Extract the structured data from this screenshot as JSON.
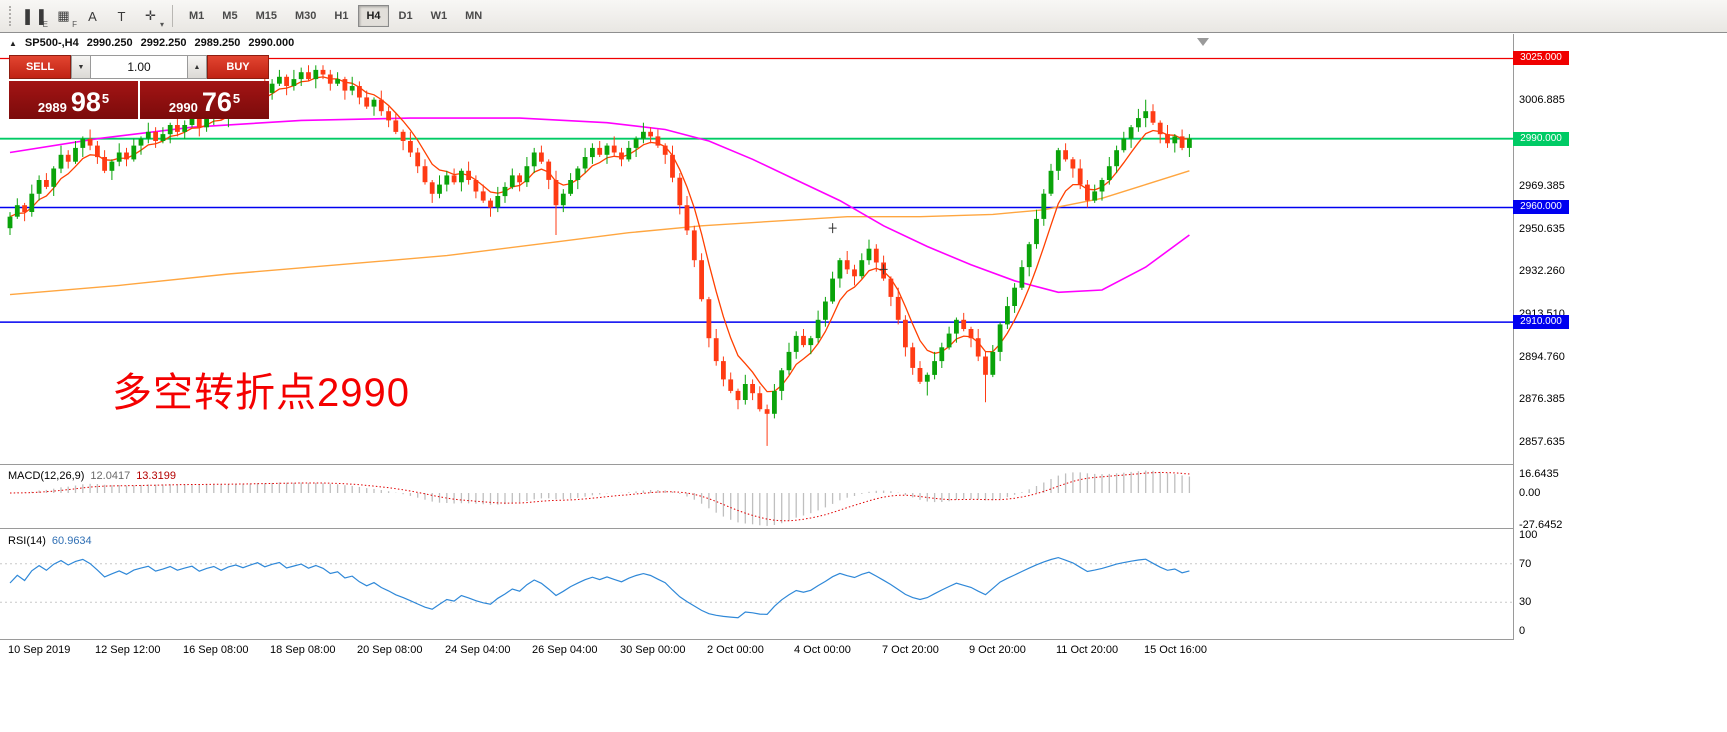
{
  "toolbar": {
    "icons": [
      {
        "name": "chart-mode-icon",
        "glyph": "▌▐",
        "badge": "E"
      },
      {
        "name": "grid-icon",
        "glyph": "▦",
        "badge": "F"
      },
      {
        "name": "text-annotation-icon",
        "glyph": "A",
        "badge": ""
      },
      {
        "name": "text-box-icon",
        "glyph": "T",
        "badge": ""
      },
      {
        "name": "cursor-tools-icon",
        "glyph": "✛",
        "badge": "▾"
      }
    ],
    "timeframes": [
      "M1",
      "M5",
      "M15",
      "M30",
      "H1",
      "H4",
      "D1",
      "W1",
      "MN"
    ],
    "active_timeframe": "H4"
  },
  "quote_bar": {
    "collapse_icon": "▲",
    "symbol": "SP500-,H4",
    "open": "2990.250",
    "high": "2992.250",
    "low": "2989.250",
    "close": "2990.000"
  },
  "trade_panel": {
    "sell_label": "SELL",
    "buy_label": "BUY",
    "volume": "1.00",
    "spinner_down": "▼",
    "spinner_up": "▲",
    "bid": {
      "main": "2989",
      "big": "98",
      "sup": "5"
    },
    "ask": {
      "main": "2990",
      "big": "76",
      "sup": "5"
    }
  },
  "annotation": {
    "text": "多空转折点2990",
    "color": "#f40000"
  },
  "price_axis": {
    "ticks": [
      {
        "label": "3006.885",
        "price": 3006.885
      },
      {
        "label": "2969.385",
        "price": 2969.385
      },
      {
        "label": "2950.635",
        "price": 2950.635
      },
      {
        "label": "2932.260",
        "price": 2932.26
      },
      {
        "label": "2913.510",
        "price": 2913.51
      },
      {
        "label": "2894.760",
        "price": 2894.76
      },
      {
        "label": "2876.385",
        "price": 2876.385
      },
      {
        "label": "2857.635",
        "price": 2857.635
      }
    ],
    "boxes": [
      {
        "label": "3025.000",
        "price": 3025.0,
        "color": "#f00000"
      },
      {
        "label": "2990.000",
        "price": 2990.0,
        "color": "#00cb65"
      },
      {
        "label": "2960.000",
        "price": 2960.0,
        "color": "#0000f0"
      },
      {
        "label": "2910.000",
        "price": 2910.0,
        "color": "#0000f0"
      }
    ]
  },
  "time_axis": [
    {
      "i": 0,
      "label": "10 Sep 2019"
    },
    {
      "i": 12,
      "label": "12 Sep 12:00"
    },
    {
      "i": 24,
      "label": "16 Sep 08:00"
    },
    {
      "i": 36,
      "label": "18 Sep 08:00"
    },
    {
      "i": 48,
      "label": "20 Sep 08:00"
    },
    {
      "i": 60,
      "label": "24 Sep 04:00"
    },
    {
      "i": 72,
      "label": "26 Sep 04:00"
    },
    {
      "i": 84,
      "label": "30 Sep 00:00"
    },
    {
      "i": 96,
      "label": "2 Oct 00:00"
    },
    {
      "i": 108,
      "label": "4 Oct 00:00"
    },
    {
      "i": 120,
      "label": "7 Oct 20:00"
    },
    {
      "i": 132,
      "label": "9 Oct 20:00"
    },
    {
      "i": 144,
      "label": "11 Oct 20:00"
    },
    {
      "i": 156,
      "label": "15 Oct 16:00"
    }
  ],
  "macd": {
    "title": "MACD(12,26,9)",
    "value_main": "12.0417",
    "value_signal": "13.3199",
    "axis": [
      {
        "label": "16.6435",
        "value": 16.6435
      },
      {
        "label": "0.00",
        "value": 0
      },
      {
        "label": "-27.6452",
        "value": -27.6452
      }
    ]
  },
  "rsi": {
    "title": "RSI(14)",
    "value": "60.9634",
    "axis": [
      {
        "label": "100",
        "value": 100
      },
      {
        "label": "70",
        "value": 70
      },
      {
        "label": "30",
        "value": 30
      },
      {
        "label": "0",
        "value": 0
      }
    ],
    "levels": [
      70,
      30
    ]
  },
  "chart_data": {
    "type": "candlestick",
    "symbol": "SP500-",
    "timeframe": "H4",
    "price_range": [
      2848,
      3035
    ],
    "up_color": "#0aa30a",
    "down_color": "#ff3b14",
    "hlines": [
      {
        "price": 3025.0,
        "color": "#f00000",
        "width": 1.2
      },
      {
        "price": 2990.0,
        "color": "#00cb65",
        "width": 1.8
      },
      {
        "price": 2960.0,
        "color": "#0000f0",
        "width": 1.5
      },
      {
        "price": 2910.0,
        "color": "#0000f0",
        "width": 1.5
      }
    ],
    "moving_averages": {
      "fast": {
        "color": "#ff4000",
        "period": 6
      },
      "mid": {
        "color": "#ff00ff",
        "anchors": [
          [
            0,
            2984
          ],
          [
            12,
            2990
          ],
          [
            25,
            2995
          ],
          [
            40,
            2998
          ],
          [
            55,
            2999
          ],
          [
            70,
            2999
          ],
          [
            82,
            2997
          ],
          [
            90,
            2994
          ],
          [
            96,
            2989
          ],
          [
            102,
            2981
          ],
          [
            108,
            2972
          ],
          [
            114,
            2963
          ],
          [
            120,
            2952
          ],
          [
            126,
            2943
          ],
          [
            132,
            2935
          ],
          [
            138,
            2928
          ],
          [
            144,
            2923
          ],
          [
            150,
            2924
          ],
          [
            156,
            2934
          ],
          [
            162,
            2948
          ]
        ]
      },
      "slow": {
        "color": "#ffa640",
        "anchors": [
          [
            0,
            2922
          ],
          [
            15,
            2926
          ],
          [
            30,
            2931
          ],
          [
            45,
            2935
          ],
          [
            60,
            2939
          ],
          [
            75,
            2945
          ],
          [
            85,
            2949
          ],
          [
            95,
            2952
          ],
          [
            105,
            2954
          ],
          [
            115,
            2956
          ],
          [
            125,
            2956
          ],
          [
            135,
            2957
          ],
          [
            142,
            2959
          ],
          [
            150,
            2964
          ],
          [
            156,
            2970
          ],
          [
            162,
            2976
          ]
        ]
      }
    },
    "markers": [
      {
        "i": 113,
        "price": 2951
      },
      {
        "i": 120,
        "price": 2933
      }
    ],
    "candles": [
      [
        2951,
        2958,
        2948,
        2956
      ],
      [
        2956,
        2964,
        2955,
        2961
      ],
      [
        2961,
        2962,
        2954,
        2958
      ],
      [
        2958,
        2970,
        2956,
        2966
      ],
      [
        2966,
        2974,
        2963,
        2972
      ],
      [
        2972,
        2975,
        2968,
        2969
      ],
      [
        2969,
        2978,
        2965,
        2977
      ],
      [
        2977,
        2987,
        2975,
        2983
      ],
      [
        2983,
        2985,
        2977,
        2980
      ],
      [
        2980,
        2989,
        2979,
        2986
      ],
      [
        2986,
        2991,
        2982,
        2990
      ],
      [
        2990,
        2994,
        2985,
        2987
      ],
      [
        2987,
        2989,
        2979,
        2982
      ],
      [
        2982,
        2985,
        2975,
        2976
      ],
      [
        2976,
        2981,
        2972,
        2980
      ],
      [
        2980,
        2988,
        2978,
        2984
      ],
      [
        2984,
        2986,
        2978,
        2981
      ],
      [
        2981,
        2990,
        2980,
        2987
      ],
      [
        2987,
        2991,
        2983,
        2990
      ],
      [
        2990,
        2997,
        2988,
        2993
      ],
      [
        2993,
        2995,
        2986,
        2989
      ],
      [
        2989,
        2995,
        2988,
        2992
      ],
      [
        2992,
        2997,
        2988,
        2996
      ],
      [
        2996,
        3000,
        2991,
        2993
      ],
      [
        2993,
        2998,
        2990,
        2996
      ],
      [
        2996,
        3002,
        2995,
        2999
      ],
      [
        2999,
        3000,
        2991,
        2995
      ],
      [
        2995,
        3003,
        2993,
        2999
      ],
      [
        2999,
        3004,
        2996,
        3002
      ],
      [
        3002,
        3005,
        2998,
        2999
      ],
      [
        2999,
        3005,
        2995,
        3004
      ],
      [
        3004,
        3011,
        3002,
        3007
      ],
      [
        3007,
        3009,
        3002,
        3005
      ],
      [
        3005,
        3012,
        3004,
        3009
      ],
      [
        3009,
        3014,
        3005,
        3013
      ],
      [
        3013,
        3017,
        3008,
        3010
      ],
      [
        3010,
        3016,
        3007,
        3014
      ],
      [
        3014,
        3020,
        3013,
        3017
      ],
      [
        3017,
        3018,
        3009,
        3013
      ],
      [
        3013,
        3020,
        3011,
        3016
      ],
      [
        3016,
        3021,
        3013,
        3019
      ],
      [
        3019,
        3022,
        3015,
        3016
      ],
      [
        3016,
        3022,
        3012,
        3020
      ],
      [
        3020,
        3022,
        3016,
        3018
      ],
      [
        3018,
        3020,
        3011,
        3014
      ],
      [
        3014,
        3019,
        3013,
        3016
      ],
      [
        3016,
        3017,
        3007,
        3011
      ],
      [
        3011,
        3017,
        3009,
        3013
      ],
      [
        3013,
        3015,
        3005,
        3008
      ],
      [
        3008,
        3011,
        3003,
        3004
      ],
      [
        3004,
        3008,
        3000,
        3007
      ],
      [
        3007,
        3011,
        3000,
        3002
      ],
      [
        3002,
        3004,
        2995,
        2998
      ],
      [
        2998,
        3001,
        2992,
        2993
      ],
      [
        2993,
        2994,
        2985,
        2989
      ],
      [
        2989,
        2993,
        2982,
        2984
      ],
      [
        2984,
        2986,
        2975,
        2978
      ],
      [
        2978,
        2981,
        2970,
        2971
      ],
      [
        2971,
        2972,
        2962,
        2966
      ],
      [
        2966,
        2974,
        2964,
        2970
      ],
      [
        2970,
        2976,
        2967,
        2974
      ],
      [
        2974,
        2977,
        2970,
        2971
      ],
      [
        2971,
        2977,
        2967,
        2976
      ],
      [
        2976,
        2980,
        2970,
        2972
      ],
      [
        2972,
        2974,
        2964,
        2967
      ],
      [
        2967,
        2970,
        2962,
        2963
      ],
      [
        2963,
        2964,
        2956,
        2960
      ],
      [
        2960,
        2969,
        2958,
        2965
      ],
      [
        2965,
        2971,
        2962,
        2969
      ],
      [
        2969,
        2977,
        2968,
        2974
      ],
      [
        2974,
        2975,
        2967,
        2971
      ],
      [
        2971,
        2982,
        2969,
        2978
      ],
      [
        2978,
        2986,
        2975,
        2984
      ],
      [
        2984,
        2987,
        2979,
        2980
      ],
      [
        2980,
        2981,
        2968,
        2972
      ],
      [
        2972,
        2976,
        2948,
        2961
      ],
      [
        2961,
        2968,
        2958,
        2966
      ],
      [
        2966,
        2975,
        2965,
        2972
      ],
      [
        2972,
        2978,
        2968,
        2977
      ],
      [
        2977,
        2986,
        2975,
        2982
      ],
      [
        2982,
        2988,
        2979,
        2986
      ],
      [
        2986,
        2989,
        2982,
        2983
      ],
      [
        2983,
        2988,
        2979,
        2987
      ],
      [
        2987,
        2991,
        2982,
        2984
      ],
      [
        2984,
        2986,
        2978,
        2981
      ],
      [
        2981,
        2989,
        2980,
        2986
      ],
      [
        2986,
        2991,
        2982,
        2990
      ],
      [
        2990,
        2997,
        2988,
        2993
      ],
      [
        2993,
        2995,
        2988,
        2991
      ],
      [
        2991,
        2994,
        2986,
        2987
      ],
      [
        2987,
        2988,
        2979,
        2983
      ],
      [
        2983,
        2987,
        2971,
        2973
      ],
      [
        2973,
        2975,
        2957,
        2961
      ],
      [
        2961,
        2965,
        2948,
        2950
      ],
      [
        2950,
        2952,
        2934,
        2937
      ],
      [
        2937,
        2940,
        2919,
        2920
      ],
      [
        2920,
        2921,
        2899,
        2903
      ],
      [
        2903,
        2907,
        2891,
        2893
      ],
      [
        2893,
        2895,
        2882,
        2885
      ],
      [
        2885,
        2888,
        2879,
        2880
      ],
      [
        2880,
        2881,
        2872,
        2876
      ],
      [
        2876,
        2887,
        2874,
        2883
      ],
      [
        2883,
        2885,
        2876,
        2879
      ],
      [
        2879,
        2882,
        2871,
        2872
      ],
      [
        2872,
        2874,
        2856,
        2870
      ],
      [
        2870,
        2883,
        2868,
        2880
      ],
      [
        2880,
        2890,
        2876,
        2889
      ],
      [
        2889,
        2901,
        2887,
        2897
      ],
      [
        2897,
        2906,
        2894,
        2904
      ],
      [
        2904,
        2907,
        2899,
        2900
      ],
      [
        2900,
        2904,
        2896,
        2903
      ],
      [
        2903,
        2915,
        2901,
        2911
      ],
      [
        2911,
        2921,
        2908,
        2919
      ],
      [
        2919,
        2932,
        2918,
        2929
      ],
      [
        2929,
        2938,
        2925,
        2937
      ],
      [
        2937,
        2941,
        2931,
        2933
      ],
      [
        2933,
        2935,
        2926,
        2930
      ],
      [
        2930,
        2940,
        2929,
        2937
      ],
      [
        2937,
        2946,
        2935,
        2942
      ],
      [
        2942,
        2944,
        2932,
        2936
      ],
      [
        2936,
        2939,
        2928,
        2929
      ],
      [
        2929,
        2930,
        2917,
        2921
      ],
      [
        2921,
        2925,
        2909,
        2911
      ],
      [
        2911,
        2913,
        2895,
        2899
      ],
      [
        2899,
        2901,
        2887,
        2890
      ],
      [
        2890,
        2893,
        2883,
        2884
      ],
      [
        2884,
        2888,
        2878,
        2887
      ],
      [
        2887,
        2897,
        2885,
        2893
      ],
      [
        2893,
        2901,
        2890,
        2899
      ],
      [
        2899,
        2908,
        2898,
        2905
      ],
      [
        2905,
        2912,
        2901,
        2911
      ],
      [
        2911,
        2914,
        2906,
        2907
      ],
      [
        2907,
        2908,
        2899,
        2903
      ],
      [
        2903,
        2907,
        2893,
        2895
      ],
      [
        2895,
        2897,
        2875,
        2887
      ],
      [
        2887,
        2900,
        2886,
        2897
      ],
      [
        2897,
        2910,
        2893,
        2909
      ],
      [
        2909,
        2921,
        2907,
        2917
      ],
      [
        2917,
        2927,
        2914,
        2925
      ],
      [
        2925,
        2937,
        2924,
        2934
      ],
      [
        2934,
        2945,
        2930,
        2944
      ],
      [
        2944,
        2959,
        2942,
        2955
      ],
      [
        2955,
        2968,
        2952,
        2966
      ],
      [
        2966,
        2979,
        2965,
        2976
      ],
      [
        2976,
        2986,
        2972,
        2985
      ],
      [
        2985,
        2988,
        2980,
        2981
      ],
      [
        2981,
        2982,
        2973,
        2977
      ],
      [
        2977,
        2981,
        2968,
        2970
      ],
      [
        2970,
        2972,
        2960,
        2963
      ],
      [
        2963,
        2970,
        2962,
        2967
      ],
      [
        2967,
        2973,
        2963,
        2972
      ],
      [
        2972,
        2982,
        2970,
        2978
      ],
      [
        2978,
        2987,
        2975,
        2985
      ],
      [
        2985,
        2993,
        2984,
        2990
      ],
      [
        2990,
        2996,
        2986,
        2995
      ],
      [
        2995,
        3003,
        2993,
        2999
      ],
      [
        2999,
        3007,
        2995,
        3002
      ],
      [
        3002,
        3005,
        2996,
        2997
      ],
      [
        2997,
        2998,
        2988,
        2992
      ],
      [
        2992,
        2996,
        2986,
        2988
      ],
      [
        2988,
        2992,
        2984,
        2991
      ],
      [
        2991,
        2994,
        2985,
        2986
      ],
      [
        2986,
        2992,
        2982,
        2990
      ]
    ]
  }
}
